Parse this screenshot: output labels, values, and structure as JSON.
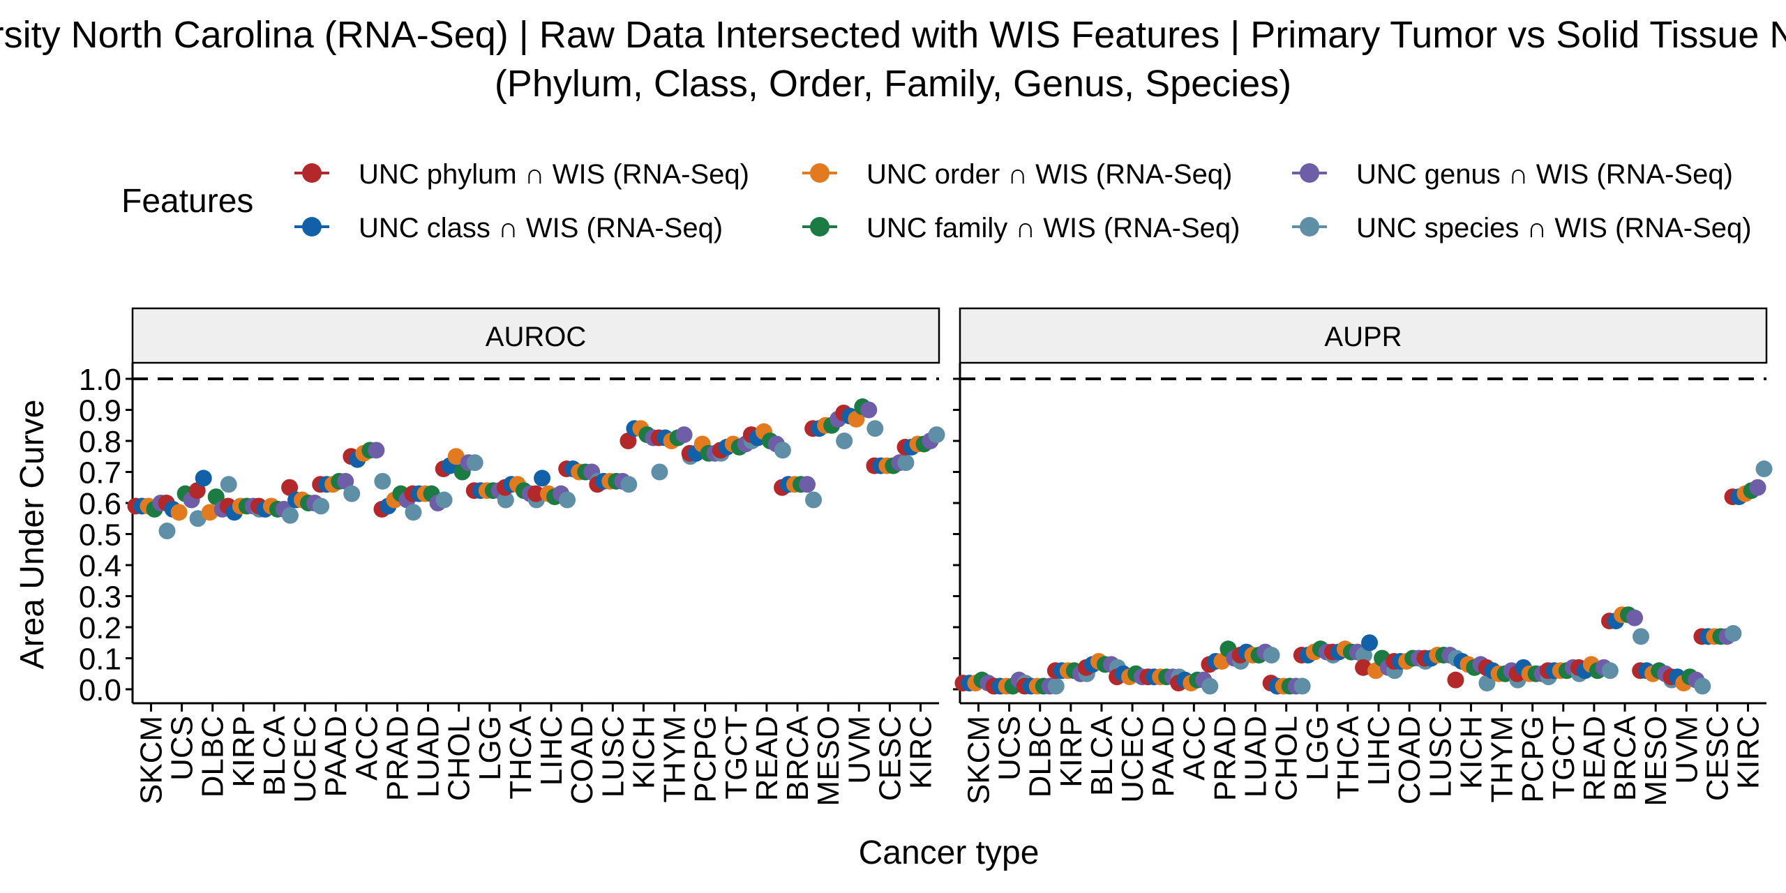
{
  "chart_data": {
    "type": "scatter",
    "title_line1": "University North Carolina (RNA-Seq) | Raw Data Intersected with WIS Features  | Primary Tumor vs Solid Tissue Normal",
    "title_line2": "(Phylum, Class, Order, Family, Genus, Species)",
    "xlabel": "Cancer type",
    "ylabel": "Area Under Curve",
    "ylim": [
      0,
      1
    ],
    "yticks": [
      "0.0",
      "0.1",
      "0.2",
      "0.3",
      "0.4",
      "0.5",
      "0.6",
      "0.7",
      "0.8",
      "0.9",
      "1.0"
    ],
    "reference_line": 1.0,
    "legend_title": "Features",
    "legend_position": "top",
    "series": [
      {
        "name": "UNC phylum ∩ WIS (RNA-Seq)",
        "color": "#B2282B"
      },
      {
        "name": "UNC class ∩ WIS (RNA-Seq)",
        "color": "#1160A8"
      },
      {
        "name": "UNC order ∩ WIS (RNA-Seq)",
        "color": "#E27B20"
      },
      {
        "name": "UNC family ∩ WIS (RNA-Seq)",
        "color": "#1B7B43"
      },
      {
        "name": "UNC genus ∩ WIS (RNA-Seq)",
        "color": "#6E5EA8"
      },
      {
        "name": "UNC species ∩ WIS (RNA-Seq)",
        "color": "#5F8FA6"
      }
    ],
    "panels": [
      {
        "name": "AUROC",
        "categories": [
          "SKCM",
          "UCS",
          "DLBC",
          "KIRP",
          "BLCA",
          "UCEC",
          "PAAD",
          "ACC",
          "PRAD",
          "LUAD",
          "CHOL",
          "LGG",
          "THCA",
          "LIHC",
          "COAD",
          "LUSC",
          "KICH",
          "THYM",
          "PCPG",
          "TGCT",
          "READ",
          "BRCA",
          "MESO",
          "UVM",
          "CESC",
          "KIRC"
        ],
        "values": {
          "SKCM": [
            0.59,
            0.59,
            0.59,
            0.58,
            0.6,
            0.51
          ],
          "UCS": [
            0.6,
            0.58,
            0.57,
            0.63,
            0.61,
            0.55
          ],
          "DLBC": [
            0.64,
            0.68,
            0.57,
            0.62,
            0.58,
            0.66
          ],
          "KIRP": [
            0.59,
            0.57,
            0.59,
            0.59,
            0.59,
            0.58
          ],
          "BLCA": [
            0.59,
            0.58,
            0.59,
            0.58,
            0.58,
            0.56
          ],
          "UCEC": [
            0.65,
            0.61,
            0.61,
            0.6,
            0.6,
            0.59
          ],
          "PAAD": [
            0.66,
            0.66,
            0.66,
            0.67,
            0.67,
            0.63
          ],
          "ACC": [
            0.75,
            0.74,
            0.76,
            0.77,
            0.77,
            0.67
          ],
          "PRAD": [
            0.58,
            0.59,
            0.61,
            0.63,
            0.61,
            0.57
          ],
          "LUAD": [
            0.63,
            0.63,
            0.63,
            0.63,
            0.6,
            0.61
          ],
          "CHOL": [
            0.71,
            0.72,
            0.75,
            0.7,
            0.73,
            0.73
          ],
          "LGG": [
            0.64,
            0.64,
            0.64,
            0.64,
            0.64,
            0.61
          ],
          "THCA": [
            0.65,
            0.66,
            0.66,
            0.64,
            0.63,
            0.61
          ],
          "LIHC": [
            0.63,
            0.68,
            0.63,
            0.62,
            0.63,
            0.61
          ],
          "COAD": [
            0.71,
            0.71,
            0.7,
            0.7,
            0.7,
            0.67
          ],
          "LUSC": [
            0.66,
            0.67,
            0.67,
            0.67,
            0.67,
            0.66
          ],
          "KICH": [
            0.8,
            0.84,
            0.84,
            0.82,
            0.81,
            0.7
          ],
          "THYM": [
            0.81,
            0.81,
            0.8,
            0.81,
            0.82,
            0.75
          ],
          "PCPG": [
            0.76,
            0.76,
            0.79,
            0.76,
            0.76,
            0.76
          ],
          "TGCT": [
            0.77,
            0.78,
            0.79,
            0.78,
            0.79,
            0.8
          ],
          "READ": [
            0.82,
            0.81,
            0.83,
            0.8,
            0.79,
            0.77
          ],
          "BRCA": [
            0.65,
            0.66,
            0.66,
            0.66,
            0.66,
            0.61
          ],
          "MESO": [
            0.84,
            0.84,
            0.85,
            0.85,
            0.87,
            0.8
          ],
          "UVM": [
            0.89,
            0.88,
            0.87,
            0.91,
            0.9,
            0.84
          ],
          "CESC": [
            0.72,
            0.72,
            0.72,
            0.72,
            0.73,
            0.73
          ],
          "KIRC": [
            0.78,
            0.78,
            0.79,
            0.79,
            0.8,
            0.82
          ]
        }
      },
      {
        "name": "AUPR",
        "categories": [
          "SKCM",
          "UCS",
          "DLBC",
          "KIRP",
          "BLCA",
          "UCEC",
          "PAAD",
          "ACC",
          "PRAD",
          "LUAD",
          "CHOL",
          "LGG",
          "THCA",
          "LIHC",
          "COAD",
          "LUSC",
          "KICH",
          "THYM",
          "PCPG",
          "TGCT",
          "READ",
          "BRCA",
          "MESO",
          "UVM",
          "CESC",
          "KIRC"
        ],
        "values": {
          "SKCM": [
            0.02,
            0.02,
            0.02,
            0.03,
            0.02,
            0.01
          ],
          "UCS": [
            0.01,
            0.01,
            0.01,
            0.01,
            0.03,
            0.02
          ],
          "DLBC": [
            0.01,
            0.01,
            0.01,
            0.01,
            0.01,
            0.01
          ],
          "KIRP": [
            0.06,
            0.06,
            0.06,
            0.06,
            0.05,
            0.05
          ],
          "BLCA": [
            0.07,
            0.08,
            0.09,
            0.08,
            0.08,
            0.07
          ],
          "UCEC": [
            0.04,
            0.05,
            0.04,
            0.05,
            0.04,
            0.04
          ],
          "PAAD": [
            0.04,
            0.04,
            0.04,
            0.04,
            0.04,
            0.04
          ],
          "ACC": [
            0.02,
            0.03,
            0.02,
            0.03,
            0.03,
            0.01
          ],
          "PRAD": [
            0.08,
            0.09,
            0.09,
            0.13,
            0.1,
            0.09
          ],
          "LUAD": [
            0.11,
            0.12,
            0.11,
            0.11,
            0.12,
            0.11
          ],
          "CHOL": [
            0.02,
            0.01,
            0.01,
            0.01,
            0.01,
            0.01
          ],
          "LGG": [
            0.11,
            0.11,
            0.12,
            0.13,
            0.12,
            0.11
          ],
          "THCA": [
            0.12,
            0.12,
            0.13,
            0.12,
            0.12,
            0.11
          ],
          "LIHC": [
            0.07,
            0.15,
            0.06,
            0.1,
            0.07,
            0.06
          ],
          "COAD": [
            0.09,
            0.09,
            0.09,
            0.1,
            0.1,
            0.09
          ],
          "LUSC": [
            0.1,
            0.1,
            0.11,
            0.11,
            0.11,
            0.1
          ],
          "KICH": [
            0.03,
            0.09,
            0.08,
            0.07,
            0.08,
            0.02
          ],
          "THYM": [
            0.07,
            0.06,
            0.05,
            0.05,
            0.06,
            0.03
          ],
          "PCPG": [
            0.05,
            0.07,
            0.05,
            0.05,
            0.05,
            0.04
          ],
          "TGCT": [
            0.06,
            0.06,
            0.06,
            0.06,
            0.07,
            0.05
          ],
          "READ": [
            0.07,
            0.06,
            0.08,
            0.06,
            0.07,
            0.06
          ],
          "BRCA": [
            0.22,
            0.22,
            0.24,
            0.24,
            0.23,
            0.17
          ],
          "MESO": [
            0.06,
            0.06,
            0.05,
            0.06,
            0.05,
            0.03
          ],
          "UVM": [
            0.04,
            0.04,
            0.02,
            0.04,
            0.03,
            0.01
          ],
          "CESC": [
            0.17,
            0.17,
            0.17,
            0.17,
            0.17,
            0.18
          ],
          "KIRC": [
            0.62,
            0.62,
            0.63,
            0.64,
            0.65,
            0.71
          ]
        }
      }
    ]
  }
}
